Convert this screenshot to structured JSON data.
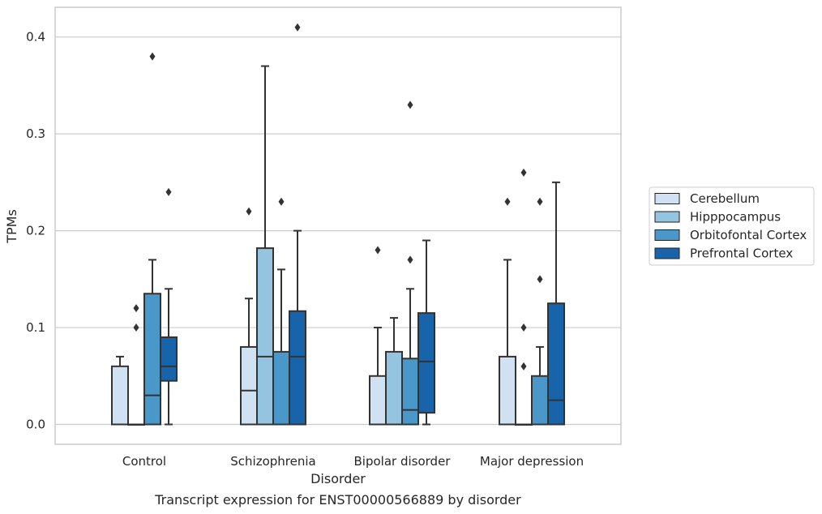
{
  "chart_data": {
    "type": "boxplot",
    "caption": "Transcript expression for ENST00000566889 by disorder",
    "xlabel": "Disorder",
    "ylabel": "TPMs",
    "ylim": [
      -0.02,
      0.43
    ],
    "yticks": [
      0.0,
      0.1,
      0.2,
      0.3,
      0.4
    ],
    "ytick_labels": [
      "0.0",
      "0.1",
      "0.2",
      "0.3",
      "0.4"
    ],
    "grid": "horizontal",
    "legend_position": "right",
    "categories": [
      "Control",
      "Schizophrenia",
      "Bipolar disorder",
      "Major depression"
    ],
    "series": [
      {
        "name": "Cerebellum",
        "color": "#d0e1f2",
        "boxes": [
          {
            "whislo": 0.0,
            "q1": 0.0,
            "med": 0.0,
            "q3": 0.06,
            "whishi": 0.07,
            "fliers": []
          },
          {
            "whislo": 0.0,
            "q1": 0.0,
            "med": 0.035,
            "q3": 0.08,
            "whishi": 0.13,
            "fliers": [
              0.22
            ]
          },
          {
            "whislo": 0.0,
            "q1": 0.0,
            "med": 0.0,
            "q3": 0.05,
            "whishi": 0.1,
            "fliers": [
              0.18
            ]
          },
          {
            "whislo": 0.0,
            "q1": 0.0,
            "med": 0.0,
            "q3": 0.07,
            "whishi": 0.17,
            "fliers": [
              0.23
            ]
          }
        ]
      },
      {
        "name": "Hipppocampus",
        "color": "#94c4df",
        "boxes": [
          {
            "whislo": 0.0,
            "q1": 0.0,
            "med": 0.0,
            "q3": 0.0,
            "whishi": 0.0,
            "fliers": [
              0.1,
              0.12
            ]
          },
          {
            "whislo": 0.0,
            "q1": 0.0,
            "med": 0.07,
            "q3": 0.182,
            "whishi": 0.37,
            "fliers": []
          },
          {
            "whislo": 0.0,
            "q1": 0.0,
            "med": 0.0,
            "q3": 0.075,
            "whishi": 0.11,
            "fliers": []
          },
          {
            "whislo": 0.0,
            "q1": 0.0,
            "med": 0.0,
            "q3": 0.0,
            "whishi": 0.0,
            "fliers": [
              0.06,
              0.1,
              0.26
            ]
          }
        ]
      },
      {
        "name": "Orbitofontal Cortex",
        "color": "#4a98c9",
        "boxes": [
          {
            "whislo": 0.0,
            "q1": 0.0,
            "med": 0.03,
            "q3": 0.135,
            "whishi": 0.17,
            "fliers": [
              0.38
            ]
          },
          {
            "whislo": 0.0,
            "q1": 0.0,
            "med": 0.0,
            "q3": 0.075,
            "whishi": 0.16,
            "fliers": [
              0.23
            ]
          },
          {
            "whislo": 0.0,
            "q1": 0.0,
            "med": 0.015,
            "q3": 0.068,
            "whishi": 0.14,
            "fliers": [
              0.17,
              0.33
            ]
          },
          {
            "whislo": 0.0,
            "q1": 0.0,
            "med": 0.0,
            "q3": 0.05,
            "whishi": 0.08,
            "fliers": [
              0.15,
              0.23
            ]
          }
        ]
      },
      {
        "name": "Prefrontal Cortex",
        "color": "#1764ab",
        "boxes": [
          {
            "whislo": 0.0,
            "q1": 0.045,
            "med": 0.06,
            "q3": 0.09,
            "whishi": 0.14,
            "fliers": [
              0.24
            ]
          },
          {
            "whislo": 0.0,
            "q1": 0.0,
            "med": 0.07,
            "q3": 0.117,
            "whishi": 0.2,
            "fliers": [
              0.41
            ]
          },
          {
            "whislo": 0.0,
            "q1": 0.012,
            "med": 0.065,
            "q3": 0.115,
            "whishi": 0.19,
            "fliers": []
          },
          {
            "whislo": 0.0,
            "q1": 0.0,
            "med": 0.025,
            "q3": 0.125,
            "whishi": 0.25,
            "fliers": []
          }
        ]
      }
    ],
    "style": {
      "line_color": "#333333",
      "grid_color": "#cccccc",
      "frame_color": "#cccccc"
    }
  }
}
